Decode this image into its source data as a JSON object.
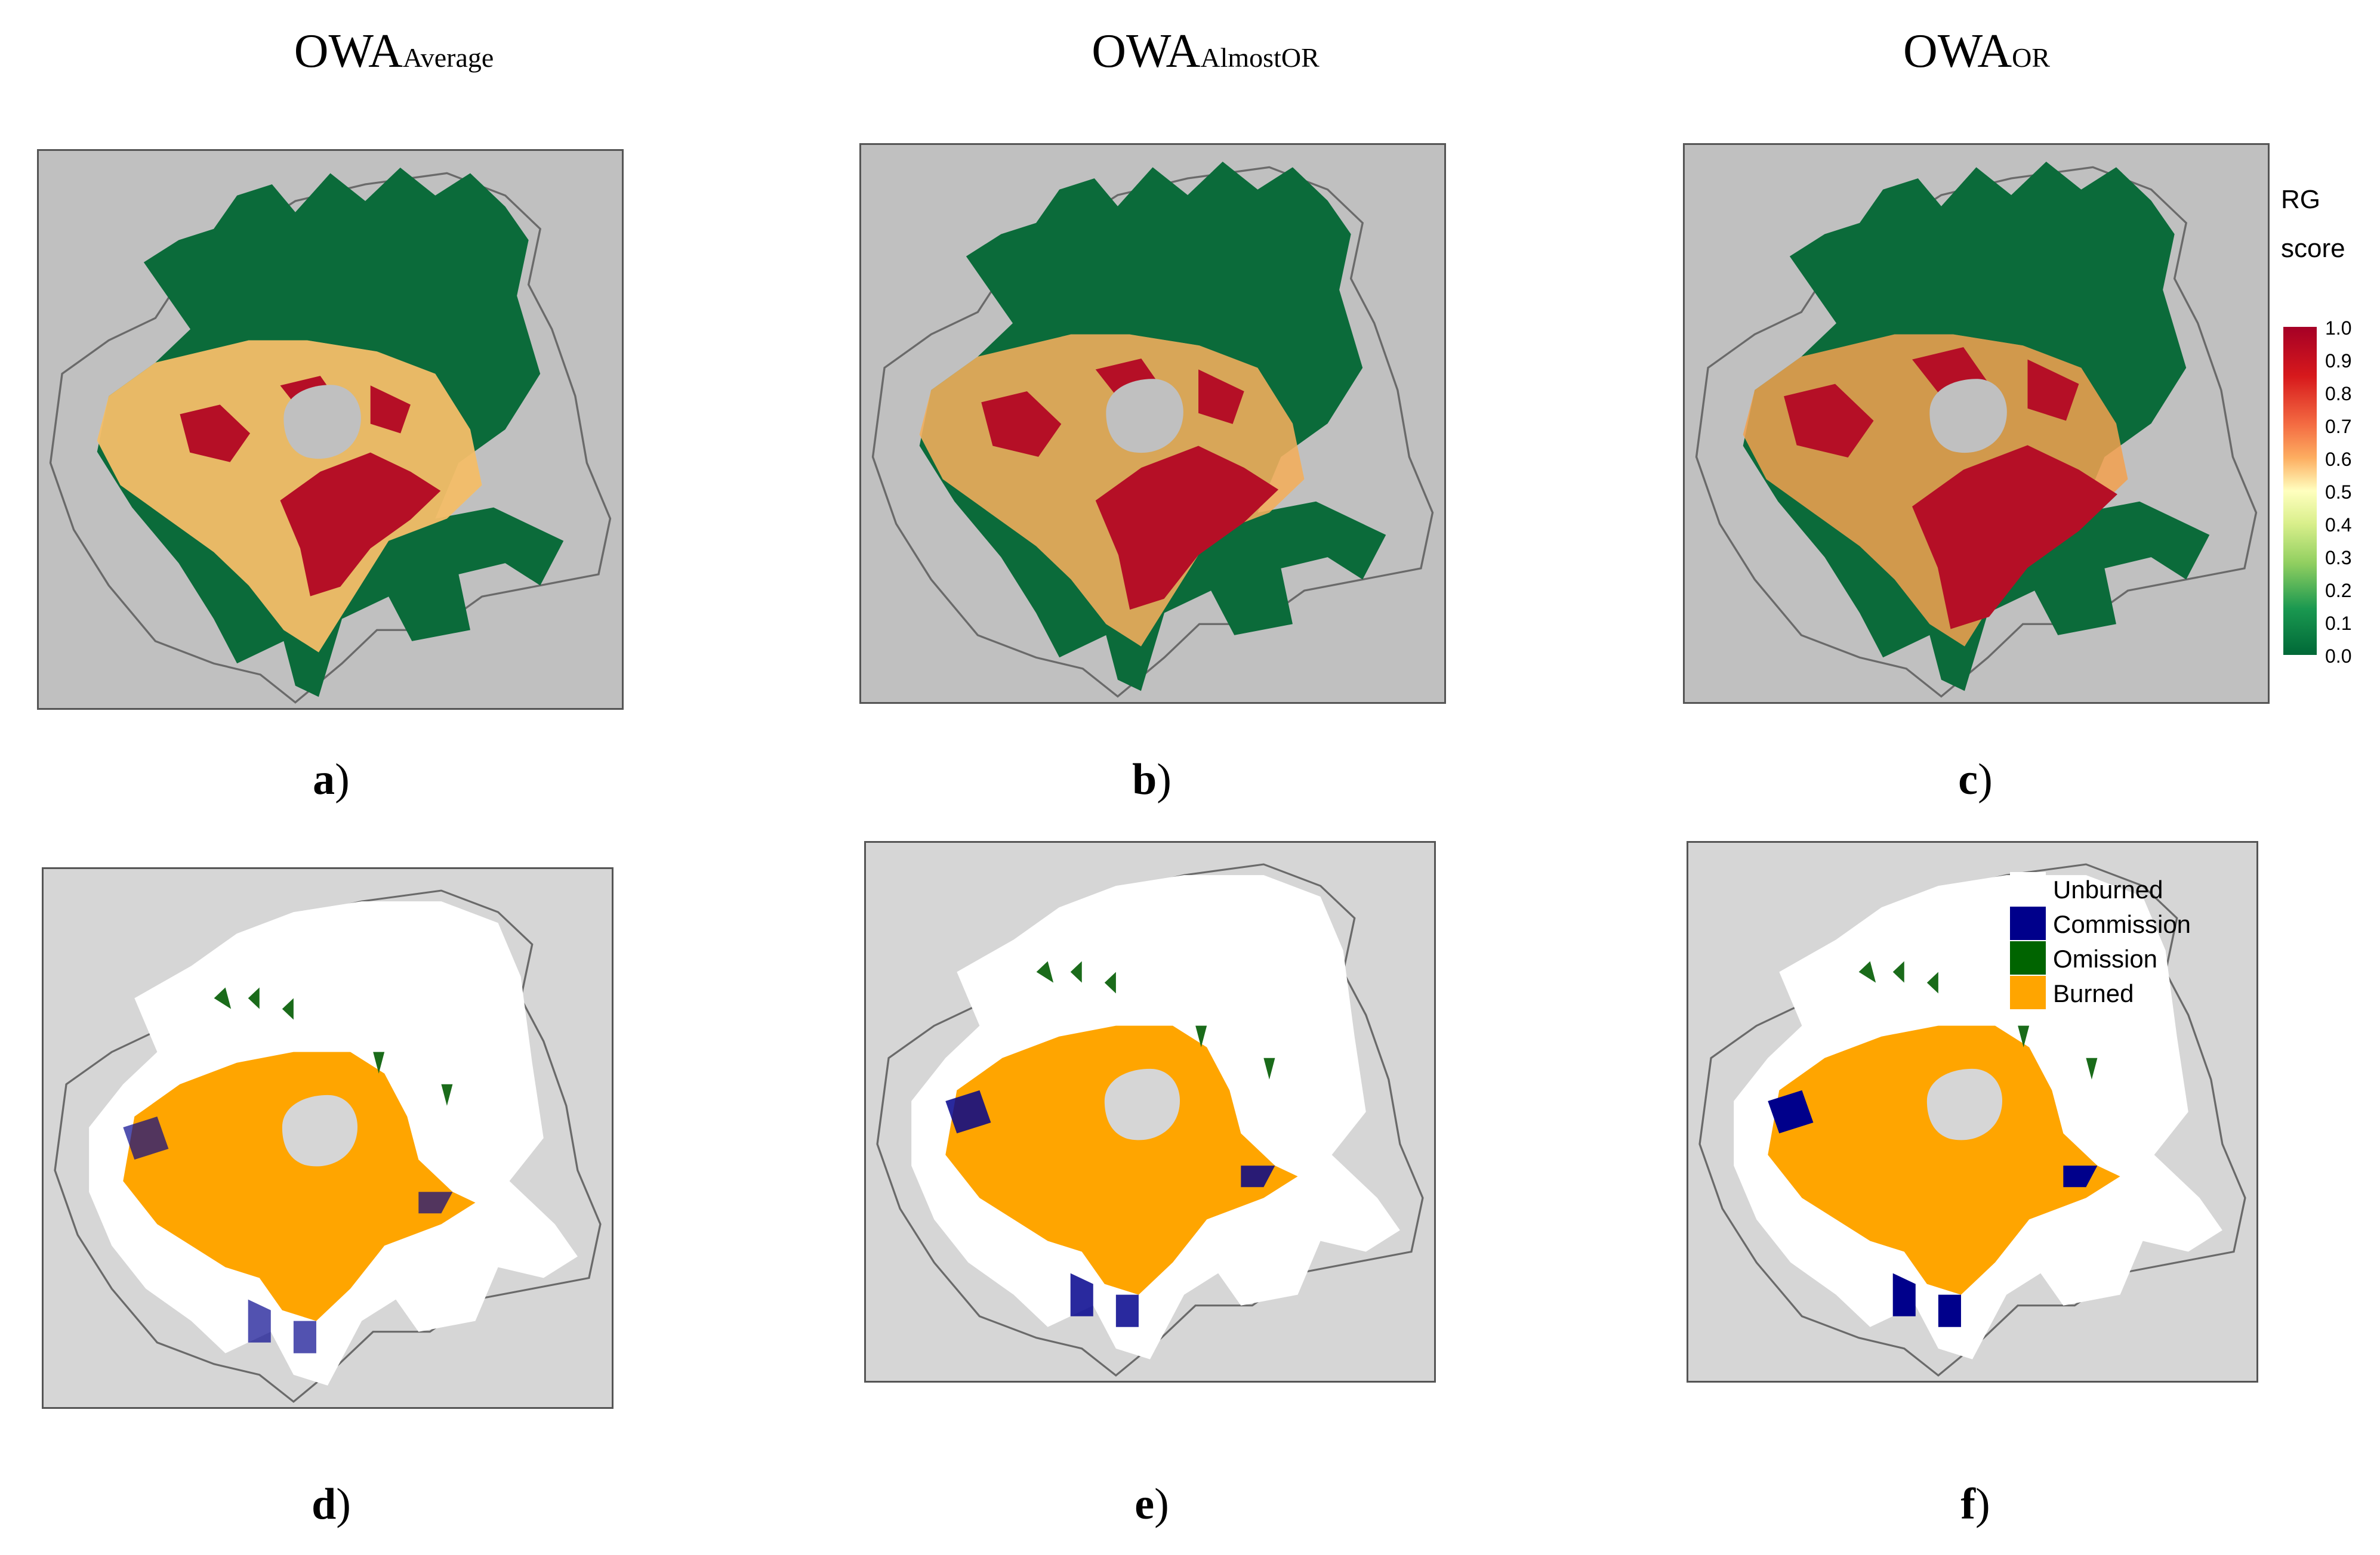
{
  "titles": [
    {
      "main": "OWA",
      "sub": "Average"
    },
    {
      "main": "OWA",
      "sub": "AlmostOR"
    },
    {
      "main": "OWA",
      "sub": "OR"
    }
  ],
  "panel_labels": [
    "a",
    "b",
    "c",
    "d",
    "e",
    "f"
  ],
  "colorbar": {
    "title_line1": "RG",
    "title_line2": "score",
    "ticks": [
      "1.0",
      "0.9",
      "0.8",
      "0.7",
      "0.6",
      "0.5",
      "0.4",
      "0.3",
      "0.2",
      "0.1",
      "0.0"
    ]
  },
  "classification_legend": [
    {
      "label": "Unburned",
      "color": "#ffffff"
    },
    {
      "label": "Commission",
      "color": "#00008b"
    },
    {
      "label": "Omission",
      "color": "#006400"
    },
    {
      "label": "Burned",
      "color": "#ffa500"
    }
  ],
  "colors": {
    "green": "#0b6b3a",
    "red": "#b50f26",
    "orange": "#ffa500",
    "navy": "#00008b",
    "omission": "#1a6b1a",
    "gray_top": "#c0c0c0",
    "gray_bottom": "#d6d6d6",
    "boundary": "#6a6a6a"
  }
}
